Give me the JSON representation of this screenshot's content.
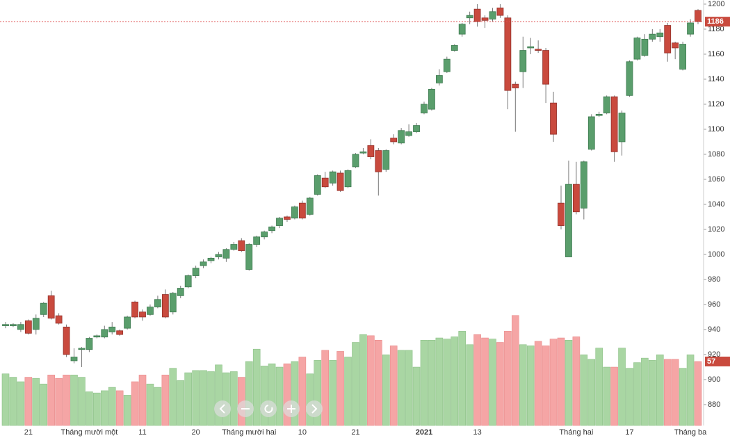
{
  "chart_data": {
    "type": "candlestick",
    "categories": [
      null,
      null,
      null,
      "21",
      null,
      null,
      null,
      null,
      null,
      null,
      null,
      "Tháng mười một",
      null,
      null,
      null,
      null,
      null,
      null,
      "11",
      null,
      null,
      null,
      null,
      null,
      null,
      "20",
      null,
      null,
      null,
      null,
      null,
      null,
      "Tháng mười hai",
      null,
      null,
      null,
      null,
      null,
      null,
      "10",
      null,
      null,
      null,
      null,
      null,
      null,
      "21",
      null,
      null,
      null,
      null,
      null,
      null,
      null,
      null,
      "2021",
      null,
      null,
      null,
      null,
      null,
      null,
      "13",
      null,
      null,
      null,
      null,
      null,
      null,
      null,
      null,
      null,
      null,
      null,
      null,
      "Tháng hai",
      null,
      null,
      null,
      null,
      null,
      null,
      "17",
      null,
      null,
      null,
      null,
      null,
      null,
      null,
      "Tháng ba",
      null
    ],
    "open": [
      943,
      943,
      940,
      947,
      940,
      952,
      967,
      951,
      942,
      915,
      924,
      924,
      934,
      934,
      938,
      939,
      941,
      962,
      954,
      952,
      958,
      968,
      954,
      967,
      974,
      983,
      991,
      995,
      998,
      997,
      1004,
      1011,
      988,
      1008,
      1014,
      1019,
      1023,
      1030,
      1029,
      1041,
      1032,
      1048,
      1061,
      1057,
      1065,
      1054,
      1070,
      1081,
      1087,
      1083,
      1068,
      1093,
      1089,
      1095,
      1098,
      1113,
      1116,
      1137,
      1146,
      1163,
      1176,
      1189,
      1196,
      1189,
      1188,
      1197,
      1189,
      1136,
      1146,
      1165,
      1164,
      1163,
      1121,
      1041,
      998,
      1056,
      1037,
      1084,
      1111,
      1113,
      1126,
      1090,
      1127,
      1156,
      1159,
      1172,
      1174,
      1183,
      1169,
      1148,
      1176,
      1195
    ],
    "high": [
      946,
      945,
      946,
      948,
      952,
      962,
      971,
      953,
      944,
      925,
      926,
      934,
      936,
      943,
      946,
      940,
      951,
      963,
      956,
      960,
      967,
      972,
      970,
      975,
      984,
      991,
      996,
      998,
      1002,
      1005,
      1010,
      1013,
      1009,
      1015,
      1019,
      1023,
      1030,
      1031,
      1039,
      1043,
      1046,
      1064,
      1066,
      1067,
      1067,
      1068,
      1081,
      1085,
      1092,
      1085,
      1084,
      1096,
      1101,
      1104,
      1105,
      1122,
      1133,
      1148,
      1158,
      1168,
      1185,
      1194,
      1200,
      1191,
      1197,
      1200,
      1191,
      1138,
      1174,
      1173,
      1171,
      1165,
      1130,
      1055,
      1075,
      1074,
      1075,
      1112,
      1114,
      1127,
      1127,
      1115,
      1155,
      1174,
      1176,
      1180,
      1180,
      1185,
      1170,
      1170,
      1188,
      1196
    ],
    "low": [
      941,
      942,
      938,
      936,
      936,
      950,
      948,
      944,
      918,
      913,
      910,
      922,
      933,
      933,
      936,
      935,
      940,
      949,
      947,
      951,
      957,
      949,
      952,
      965,
      973,
      981,
      989,
      993,
      996,
      994,
      1003,
      1002,
      987,
      1006,
      1012,
      1017,
      1021,
      1026,
      1028,
      1028,
      1031,
      1047,
      1053,
      1055,
      1050,
      1053,
      1069,
      1080,
      1076,
      1047,
      1066,
      1088,
      1088,
      1094,
      1097,
      1112,
      1115,
      1135,
      1145,
      1162,
      1174,
      1184,
      1182,
      1181,
      1186,
      1189,
      1116,
      1098,
      1133,
      1160,
      1161,
      1121,
      1090,
      1020,
      998,
      1032,
      1028,
      1083,
      1110,
      1112,
      1074,
      1079,
      1126,
      1155,
      1158,
      1170,
      1170,
      1154,
      1156,
      1147,
      1174,
      1184
    ],
    "close": [
      944,
      944,
      944,
      937,
      949,
      961,
      949,
      945,
      920,
      918,
      925,
      933,
      935,
      940,
      942,
      936,
      950,
      950,
      950,
      958,
      964,
      950,
      969,
      973,
      983,
      989,
      994,
      997,
      1000,
      1004,
      1008,
      1003,
      1008,
      1014,
      1018,
      1022,
      1029,
      1028,
      1038,
      1029,
      1045,
      1063,
      1054,
      1066,
      1051,
      1067,
      1080,
      1082,
      1078,
      1066,
      1083,
      1090,
      1099,
      1098,
      1103,
      1120,
      1132,
      1143,
      1156,
      1167,
      1184,
      1191,
      1186,
      1187,
      1194,
      1191,
      1131,
      1133,
      1163,
      1166,
      1163,
      1136,
      1096,
      1023,
      1056,
      1034,
      1074,
      1110,
      1112,
      1126,
      1082,
      1113,
      1154,
      1173,
      1172,
      1176,
      1177,
      1161,
      1165,
      1168,
      1185,
      1186
    ],
    "volume": [
      46,
      43,
      39,
      43,
      42,
      37,
      45,
      42,
      45,
      45,
      43,
      30,
      29,
      31,
      34,
      31,
      27,
      39,
      45,
      37,
      34,
      45,
      51,
      40,
      47,
      49,
      49,
      48,
      54,
      47,
      48,
      43,
      57,
      68,
      53,
      55,
      52,
      55,
      57,
      61,
      46,
      58,
      67,
      58,
      66,
      61,
      74,
      81,
      80,
      76,
      63,
      71,
      67,
      67,
      52,
      76,
      76,
      78,
      77,
      79,
      84,
      72,
      81,
      78,
      77,
      74,
      84,
      98,
      72,
      71,
      75,
      71,
      77,
      78,
      76,
      79,
      63,
      59,
      69,
      52,
      52,
      69,
      51,
      56,
      60,
      58,
      63,
      59,
      59,
      51,
      63,
      57
    ],
    "ylim": [
      863.3,
      1203.3
    ],
    "yticks": [
      880,
      900,
      920,
      940,
      960,
      980,
      1000,
      1020,
      1040,
      1060,
      1080,
      1100,
      1120,
      1140,
      1160,
      1180,
      1200
    ],
    "volume_ylim": [
      0,
      379
    ],
    "up_color": "#5a9e6c",
    "down_color": "#c94a3e",
    "volume_up_color": "#a9d6a3",
    "volume_down_color": "#f5a5a5",
    "price_line_color": "#e05050"
  }
}
